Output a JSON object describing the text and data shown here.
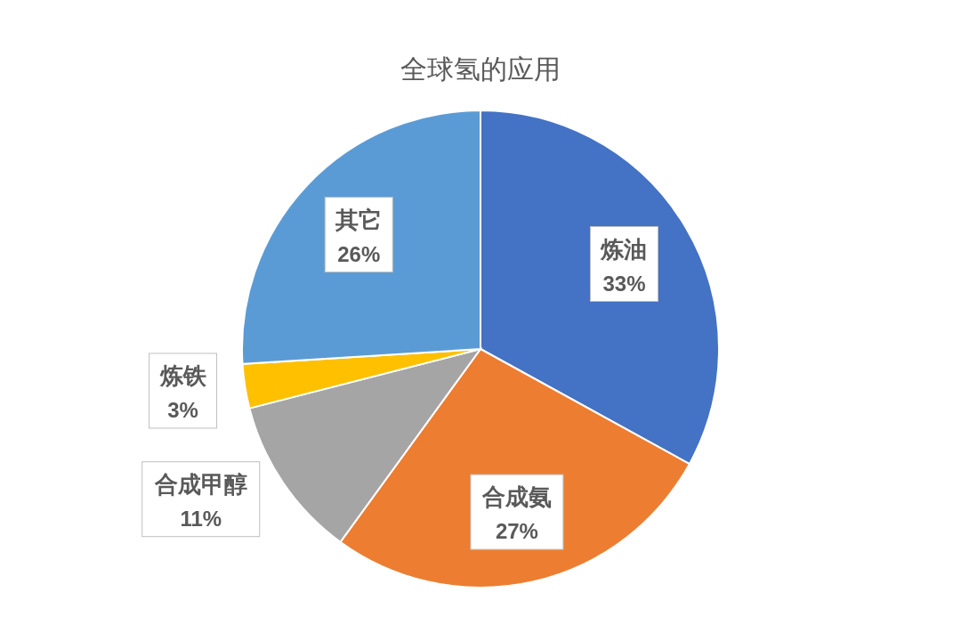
{
  "chart_data": {
    "type": "pie",
    "title": "全球氢的应用",
    "categories": [
      "炼油",
      "合成氨",
      "合成甲醇",
      "炼铁",
      "其它"
    ],
    "values": [
      33,
      27,
      11,
      3,
      26
    ],
    "colors": [
      "#4472c4",
      "#ed7d31",
      "#a5a5a5",
      "#ffc000",
      "#5b9bd5"
    ],
    "value_labels": [
      "33%",
      "27%",
      "11%",
      "3%",
      "26%"
    ]
  }
}
